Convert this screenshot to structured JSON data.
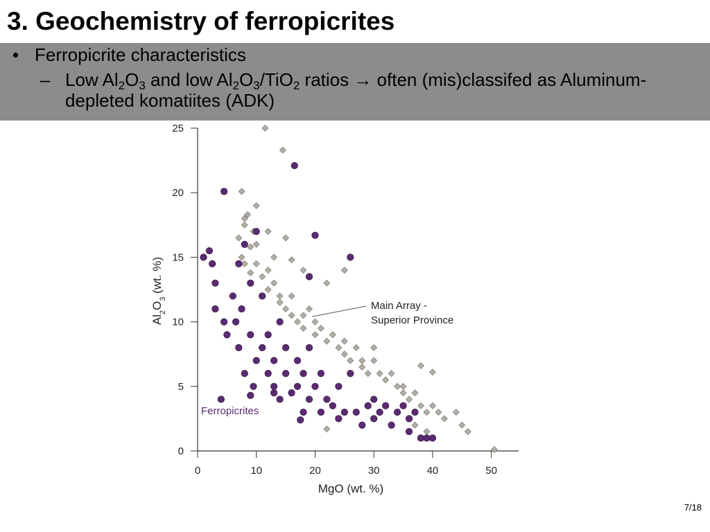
{
  "slide": {
    "title": "3. Geochemistry of ferropicrites",
    "bullets": [
      {
        "segments": [
          {
            "text": "Ferropicrite characteristics"
          }
        ]
      },
      {
        "segments": [
          {
            "text": "Low Al"
          },
          {
            "text": "2",
            "sub": true
          },
          {
            "text": "O"
          },
          {
            "text": "3",
            "sub": true
          },
          {
            "text": " and low Al"
          },
          {
            "text": "2",
            "sub": true
          },
          {
            "text": "O"
          },
          {
            "text": "3",
            "sub": true
          },
          {
            "text": "/TiO"
          },
          {
            "text": "2",
            "sub": true
          },
          {
            "text": " ratios → often (mis)classifed as Aluminum-depleted komatiites (ADK)"
          }
        ]
      }
    ],
    "page_number": "7/18"
  },
  "chart_data": {
    "type": "scatter",
    "x_label": "MgO (wt. %)",
    "y_label_segments": [
      {
        "text": "Al"
      },
      {
        "text": "2",
        "sub": true
      },
      {
        "text": "O"
      },
      {
        "text": "3",
        "sub": true
      },
      {
        "text": " (wt. %)"
      }
    ],
    "xlim": [
      0,
      55
    ],
    "ylim": [
      0,
      25
    ],
    "xticks": [
      0,
      10,
      20,
      30,
      40,
      50
    ],
    "yticks": [
      0,
      5,
      10,
      15,
      20,
      25
    ],
    "series": [
      {
        "label_lines": [
          "Main Array -",
          "Superior Province"
        ],
        "color": "#b3aea6",
        "marker": "diamond",
        "x": [
          7,
          8,
          8.5,
          9,
          9.5,
          10,
          7.5,
          8,
          9,
          10,
          11,
          12,
          12,
          13,
          14,
          14,
          15,
          16,
          16,
          17,
          18,
          18,
          19,
          20,
          20,
          21,
          22,
          23,
          24,
          25,
          25,
          26,
          27,
          28,
          28,
          29,
          30,
          31,
          32,
          33,
          34,
          35,
          35,
          36,
          37,
          38,
          39,
          40,
          41,
          42,
          44,
          45,
          46,
          50.5,
          11.5,
          14.5,
          7.5,
          12,
          15,
          18,
          22,
          25,
          30,
          38,
          40,
          13,
          16,
          10,
          8,
          37,
          39,
          22
        ],
        "values": [
          16.5,
          17.5,
          18.3,
          15.8,
          17,
          16,
          15,
          14.5,
          13.8,
          14.5,
          13.5,
          14,
          12.5,
          13,
          12,
          11.5,
          11,
          12,
          10.5,
          10,
          10.5,
          9.5,
          11,
          10,
          9,
          9.5,
          8.5,
          9,
          8,
          8.5,
          7.5,
          7,
          8,
          7,
          6.5,
          6,
          7,
          6,
          5.5,
          6,
          5,
          5,
          4.5,
          4,
          4.5,
          3.5,
          3,
          3.5,
          3,
          2.5,
          3,
          2,
          1.5,
          0.1,
          25,
          23.3,
          20.1,
          17,
          16.5,
          14,
          13,
          14,
          8,
          6.6,
          6.1,
          15,
          14.8,
          19,
          18,
          2,
          1.5,
          1.7
        ]
      },
      {
        "name": "Ferropicrites",
        "color": "#5b2b72",
        "marker": "circle",
        "x": [
          1,
          2,
          2.5,
          3,
          3,
          4.5,
          4.5,
          5,
          6,
          6.5,
          7,
          7,
          7.5,
          8,
          8,
          9,
          9,
          9.5,
          10,
          10,
          11,
          11,
          12,
          12,
          13,
          13,
          14,
          14,
          15,
          15,
          16,
          16.5,
          17,
          17,
          18,
          18,
          19,
          19,
          19,
          20,
          20,
          21,
          21,
          22,
          23,
          24,
          24,
          25,
          26,
          26,
          27,
          28,
          29,
          30,
          30,
          31,
          32,
          33,
          34,
          35,
          36,
          36,
          37,
          38,
          39,
          40,
          17.5,
          4,
          13,
          9
        ],
        "values": [
          15,
          15.5,
          14.5,
          13,
          11,
          20.1,
          10,
          9,
          12,
          10,
          14.5,
          8,
          11,
          6,
          16,
          9,
          13,
          5,
          17,
          7,
          8,
          12,
          6,
          9,
          7,
          5,
          10,
          4,
          6,
          8,
          4.5,
          22.1,
          5,
          7,
          3,
          6,
          4,
          8,
          13.5,
          16.7,
          5,
          3,
          6,
          4,
          3.5,
          5,
          2.5,
          3,
          15,
          6,
          3,
          2,
          3.5,
          4,
          2.5,
          3,
          3.5,
          2,
          3,
          3.5,
          2.5,
          1.5,
          3,
          1,
          1,
          1,
          2.4,
          4,
          4.5,
          4.3
        ]
      }
    ]
  }
}
